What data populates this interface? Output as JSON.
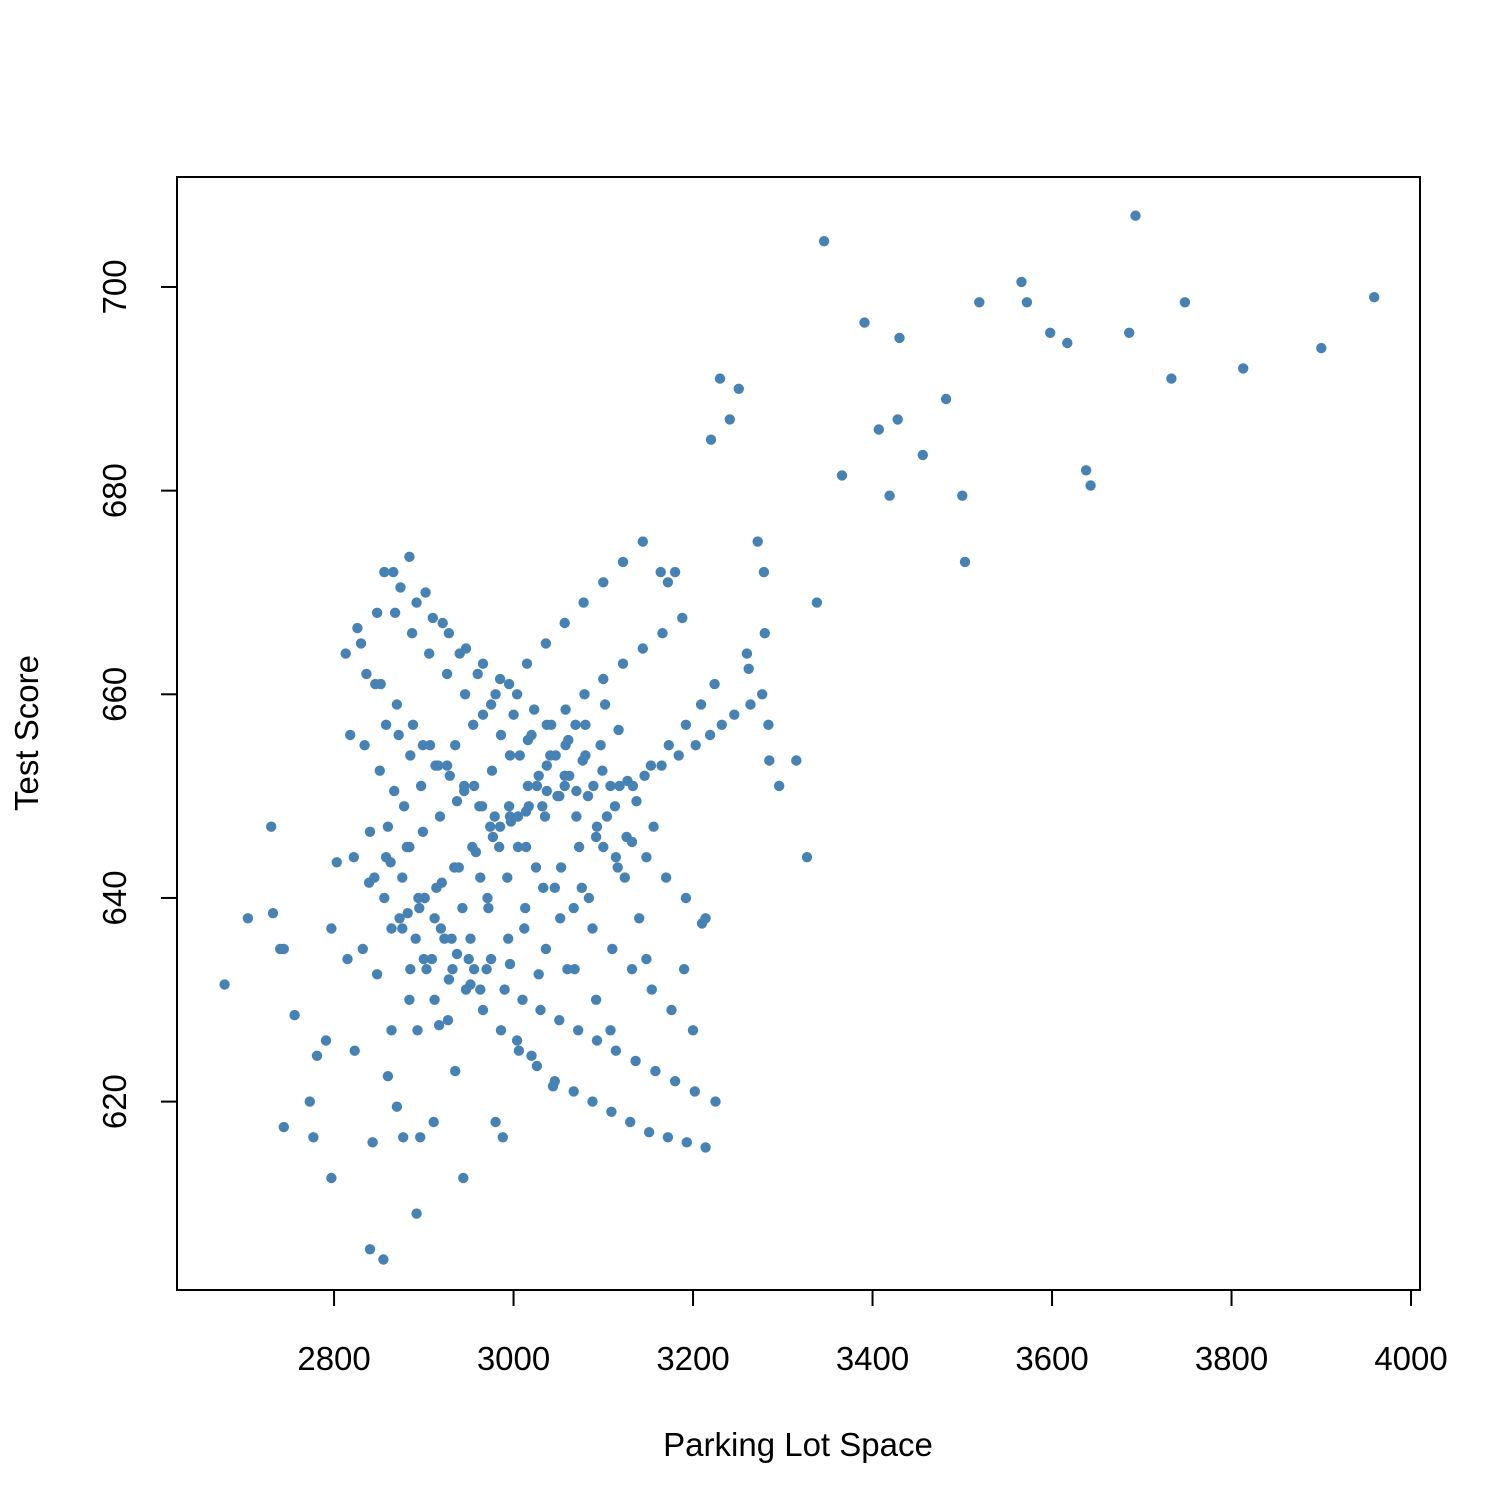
{
  "chart_data": {
    "type": "scatter",
    "title": "",
    "xlabel": "Parking Lot Space",
    "ylabel": "Test Score",
    "xlim": [
      2625,
      4010
    ],
    "ylim": [
      601.5,
      710.8
    ],
    "xticks": [
      2800,
      3000,
      3200,
      3400,
      3600,
      3800,
      4000
    ],
    "yticks": [
      620,
      640,
      660,
      680,
      700
    ],
    "grid": false,
    "legend": "none",
    "point_color": "#4682B4",
    "series": [
      {
        "x": [
          2678,
          2704,
          2732,
          2740,
          2744,
          2744,
          2730,
          2756,
          2777,
          2773,
          2781,
          2791,
          2797,
          2797,
          2803,
          2815,
          2823,
          2832,
          2840,
          2843,
          2848,
          2855,
          2860,
          2864,
          2870,
          2877,
          2885,
          2892,
          2896,
          2900,
          2911,
          2917,
          2927,
          2935,
          2944,
          2952,
          2963,
          2971,
          2980,
          2988,
          2996,
          3004,
          3012,
          3020,
          3028,
          3036,
          3044,
          3052,
          3060,
          3068,
          3076,
          3084,
          3092,
          3100,
          3108,
          3116,
          3124,
          3132,
          3140,
          3148,
          3156,
          3164,
          3172,
          3180,
          3190,
          3200,
          3210,
          3220,
          3230,
          3241,
          3251,
          3262,
          3272,
          3279,
          3284,
          3285,
          3296,
          3315,
          3327,
          3338,
          3346,
          3366,
          3391,
          3407,
          3419,
          3430,
          3428,
          3456,
          3482,
          3500,
          3503,
          3519,
          3566,
          3572,
          3598,
          3617,
          3638,
          3643,
          3686,
          3693,
          3733,
          3748,
          3813,
          3900,
          3959,
          2813,
          2826,
          2836,
          2846,
          2858,
          2872,
          2885,
          2899,
          2913,
          2929,
          2945,
          2962,
          2979,
          2996,
          3014,
          3032,
          3051,
          3070,
          3089,
          3108,
          3127,
          3146,
          3165,
          3184,
          3203,
          3219,
          3232,
          3246,
          3264,
          3277,
          2818,
          2834,
          2851,
          2867,
          2884,
          2901,
          2919,
          2937,
          2956,
          2975,
          2994,
          3013,
          3033,
          3053,
          3073,
          3093,
          3113,
          3133,
          3153,
          3173,
          3192,
          3209,
          3224,
          3260,
          3280,
          2822,
          2839,
          2856,
          2873,
          2891,
          2909,
          2928,
          2947,
          2966,
          2986,
          3006,
          3026,
          3046,
          3067,
          3088,
          3109,
          3130,
          3151,
          3172,
          3193,
          3214,
          2830,
          2848,
          2866,
          2884,
          2902,
          2921,
          2940,
          2960,
          2980,
          3000,
          3020,
          3041,
          3062,
          3083,
          3104,
          3126,
          3148,
          3170,
          3192,
          3214,
          2840,
          2858,
          2876,
          2894,
          2912,
          2931,
          2950,
          2970,
          2990,
          3010,
          3030,
          3051,
          3072,
          3093,
          3114,
          3136,
          3158,
          3180,
          3202,
          3225,
          2845,
          2863,
          2881,
          2899,
          2918,
          2937,
          2956,
          2976,
          2996,
          3016,
          3037,
          3058,
          3079,
          3100,
          3122,
          3144,
          3166,
          3188,
          2852,
          2870,
          2888,
          2907,
          2926,
          2945,
          2965,
          2985,
          3005,
          3025,
          3046,
          3067,
          3088,
          3110,
          3132,
          3154,
          3176,
          2860,
          2878,
          2897,
          2916,
          2935,
          2955,
          2975,
          2995,
          3015,
          3036,
          3057,
          3078,
          3100,
          3122,
          3144,
          2868,
          2887,
          2906,
          2926,
          2946,
          2966,
          2986,
          3007,
          3028,
          3049,
          3070,
          3092,
          3114,
          2876,
          2895,
          2914,
          2934,
          2954,
          2974,
          2995,
          3016,
          3037,
          3058,
          3080,
          3102,
          2884,
          2903,
          2923,
          2943,
          2963,
          2984,
          3005,
          3026,
          3047,
          3069,
          2893,
          2912,
          2932,
          2952,
          2972,
          2993,
          3014,
          3035,
          3057,
          2856,
          2874,
          2892,
          2910,
          2928,
          2947,
          2966,
          2985,
          3004,
          3023,
          3042,
          3061,
          3080,
          3099,
          3118,
          3137,
          2864,
          2882,
          2901,
          2920,
          2939,
          2958,
          2977,
          2997,
          3017,
          3037,
          3057,
          3077,
          3097,
          3117
        ],
        "y": [
          631.5,
          638,
          638.5,
          635,
          635,
          617.5,
          647,
          628.5,
          616.5,
          620,
          624.5,
          626,
          612.5,
          637,
          643.5,
          634,
          625,
          635,
          605.5,
          616,
          632.5,
          604.5,
          622.5,
          627,
          619.5,
          616.5,
          633,
          609,
          616.5,
          634,
          618,
          627.5,
          628,
          623,
          612.5,
          631.5,
          631,
          640,
          618,
          616.5,
          633.5,
          626,
          637,
          624.5,
          632.5,
          635,
          621.5,
          638,
          633,
          633,
          641,
          640,
          630,
          645,
          627,
          643,
          642,
          645.5,
          638,
          634,
          647,
          672,
          671,
          672,
          633,
          627,
          637.5,
          685,
          691,
          687,
          690,
          662.5,
          675,
          672,
          657,
          653.5,
          651,
          653.5,
          644,
          669,
          704.5,
          681.5,
          696.5,
          686,
          679.5,
          695,
          687,
          683.5,
          689,
          679.5,
          673,
          698.5,
          700.5,
          698.5,
          695.5,
          694.5,
          682,
          680.5,
          695.5,
          707,
          691,
          698.5,
          692,
          694,
          699,
          664,
          666.5,
          662,
          661,
          657,
          656,
          654,
          655,
          653,
          652,
          650.5,
          649,
          648,
          648,
          648.5,
          649,
          650,
          650.5,
          651,
          651,
          651.5,
          652,
          653,
          654,
          655,
          656,
          657,
          658,
          659,
          660,
          656,
          655,
          652.5,
          650.5,
          645,
          640,
          637,
          634.5,
          633,
          634,
          636,
          639,
          641,
          643,
          645,
          647,
          649,
          651,
          653,
          655,
          657,
          659,
          661,
          664,
          666,
          644,
          641.5,
          640,
          638,
          636,
          634,
          632,
          631,
          629,
          627,
          625,
          623.5,
          622,
          621,
          620,
          619,
          618,
          617,
          616.5,
          616,
          615.5,
          665,
          668,
          672,
          673.5,
          670,
          667,
          664,
          662,
          660,
          658,
          656,
          654,
          652,
          650,
          648,
          646,
          644,
          642,
          640,
          638,
          646.5,
          644,
          642,
          640,
          638,
          636,
          634,
          633,
          631,
          630,
          629,
          628,
          627,
          626,
          625,
          624,
          623,
          622,
          621,
          620,
          642,
          643.5,
          645,
          646.5,
          648,
          649.5,
          651,
          652.5,
          654,
          655.5,
          657,
          658.5,
          660,
          661.5,
          663,
          664.5,
          666,
          667.5,
          661,
          659,
          657,
          655,
          653,
          651,
          649,
          647,
          645,
          643,
          641,
          639,
          637,
          635,
          633,
          631,
          629,
          647,
          649,
          651,
          653,
          655,
          657,
          659,
          661,
          663,
          665,
          667,
          669,
          671,
          673,
          675,
          668,
          666,
          664,
          662,
          660,
          658,
          656,
          654,
          652,
          650,
          648,
          646,
          644,
          637,
          639,
          641,
          643,
          645,
          647,
          649,
          651,
          653,
          655,
          657,
          659,
          630,
          633,
          636,
          639,
          642,
          645,
          648,
          651,
          654,
          657,
          627,
          630,
          633,
          636,
          639,
          642,
          645,
          648,
          651,
          672,
          670.5,
          669,
          667.5,
          666,
          664.5,
          663,
          661.5,
          660,
          658.5,
          657,
          655.5,
          654,
          652.5,
          651,
          649.5,
          637,
          638.5,
          640,
          641.5,
          643,
          644.5,
          646,
          647.5,
          649,
          650.5,
          652,
          653.5,
          655,
          656.5
        ]
      }
    ]
  }
}
